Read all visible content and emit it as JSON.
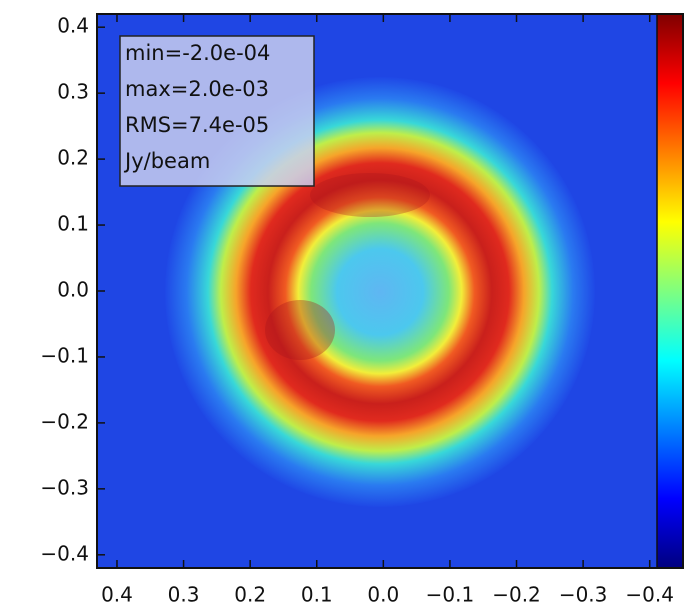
{
  "chart_data": {
    "type": "image",
    "annotations": [
      "min=-2.0e-04",
      "max=2.0e-03",
      "RMS=7.4e-05",
      "Jy/beam"
    ],
    "xlim": [
      0.43,
      -0.45
    ],
    "ylim": [
      -0.42,
      0.42
    ],
    "xticks": [
      0.4,
      0.3,
      0.2,
      0.1,
      {
        "value": 0,
        "label": "0.0"
      },
      {
        "value": -0.1,
        "label": "−0.1"
      },
      {
        "value": -0.2,
        "label": "−0.2"
      },
      {
        "value": -0.3,
        "label": "−0.3"
      },
      {
        "value": -0.4,
        "label": "−0.4"
      }
    ],
    "yticks": [
      0.4,
      0.3,
      0.2,
      0.1,
      {
        "value": 0,
        "label": "0.0"
      },
      {
        "value": -0.1,
        "label": "−0.1"
      },
      {
        "value": -0.2,
        "label": "−0.2"
      },
      {
        "value": -0.3,
        "label": "−0.3"
      },
      {
        "value": -0.4,
        "label": "−0.4"
      }
    ],
    "colormap": "jet"
  }
}
